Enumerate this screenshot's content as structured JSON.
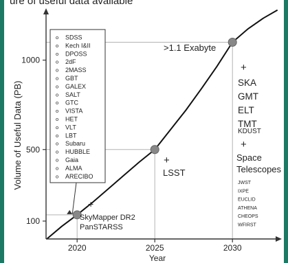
{
  "banner_text": "ure of useful data available",
  "chart_data": {
    "type": "line",
    "xlabel": "Year",
    "ylabel": "Volume of Useful Data (PB)",
    "x_ticks": [
      "2020",
      "2025",
      "2030"
    ],
    "y_ticks": [
      "100",
      "500",
      "1000"
    ],
    "xlim": [
      2018,
      2033
    ],
    "ylim": [
      0,
      1290
    ],
    "series": [
      {
        "x": [
          2018.05,
          2019,
          2020,
          2021,
          2022,
          2023,
          2024,
          2025,
          2026,
          2027,
          2028,
          2029,
          2030,
          2031,
          2032,
          2032.9
        ],
        "y": [
          0,
          70,
          135,
          205,
          280,
          355,
          430,
          500,
          610,
          720,
          840,
          965,
          1100,
          1175,
          1235,
          1280
        ]
      }
    ],
    "milestones": [
      {
        "x": 2020,
        "y": 135
      },
      {
        "x": 2025,
        "y": 500
      },
      {
        "x": 2030,
        "y": 1100
      }
    ],
    "annotations": {
      "exabyte": ">1.1 Exabyte",
      "skymapper_plus": "+",
      "skymapper": [
        "SkyMapper DR2",
        "PanSTARSS"
      ],
      "lsst_plus": "+",
      "lsst": "LSST",
      "future_plus": "+",
      "future": [
        "SKA",
        "GMT",
        "ELT",
        "TMT"
      ],
      "kdust": "KDUST",
      "space_plus": "+",
      "space": [
        "Space",
        "Telescopes"
      ],
      "missions": [
        "JWST",
        "IXPE",
        "EUCLID",
        "ATHENA",
        "CHEOPS",
        "WFIRST"
      ]
    },
    "legend_box": [
      "SDSS",
      "Kech I&II",
      "DPOSS",
      "2dF",
      "2MASS",
      "GBT",
      "GALEX",
      "SALT",
      "GTC",
      "VISTA",
      "HET",
      "VLT",
      "LBT",
      "Subaru",
      "HUBBLE",
      "Gaia",
      "ALMA",
      "ARECIBO"
    ],
    "legend_marker": "o",
    "colors": {
      "curve": "#111111",
      "marker": "#888888",
      "guide": "#b3b3b3",
      "axis": "#333333"
    }
  }
}
